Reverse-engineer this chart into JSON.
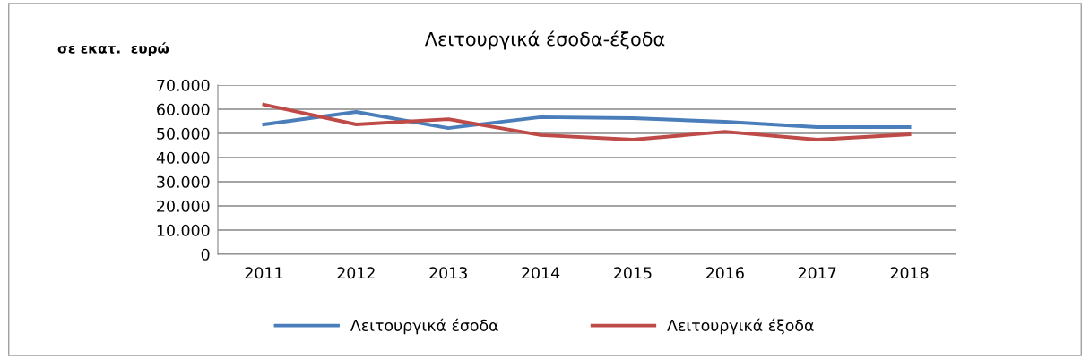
{
  "chart_data": {
    "type": "line",
    "title": "Λειτουργικά έσοδα-έξοδα",
    "ylabel": "σε εκατ.  ευρώ",
    "categories": [
      "2011",
      "2012",
      "2013",
      "2014",
      "2015",
      "2016",
      "2017",
      "2018"
    ],
    "series": [
      {
        "name": "Λειτουργικά έσοδα",
        "color": "#4a7ebb",
        "values": [
          53700,
          58900,
          52200,
          56700,
          56300,
          54800,
          52600,
          52600
        ]
      },
      {
        "name": "Λειτουργικά έξοδα",
        "color": "#be4b48",
        "values": [
          61900,
          53700,
          55900,
          49300,
          47400,
          50700,
          47400,
          49600
        ]
      }
    ],
    "ylim": [
      0,
      70000
    ],
    "yticks": [
      {
        "value": 0,
        "label": "0"
      },
      {
        "value": 10000,
        "label": "10.000"
      },
      {
        "value": 20000,
        "label": "20.000"
      },
      {
        "value": 30000,
        "label": "30.000"
      },
      {
        "value": 40000,
        "label": "40.000"
      },
      {
        "value": 50000,
        "label": "50.000"
      },
      {
        "value": 60000,
        "label": "60.000"
      },
      {
        "value": 70000,
        "label": "70.000"
      }
    ],
    "grid": "y",
    "legend": "bottom",
    "marker": "none",
    "line_style": "solid"
  }
}
